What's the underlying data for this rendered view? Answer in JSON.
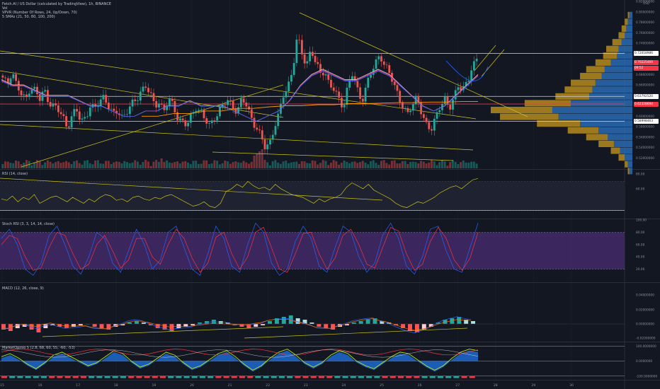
{
  "header": {
    "title": "Fetch.AI / US Dollar (calculated by TradingView), 1h, BINANCE",
    "vol_label": "Vol",
    "vpvr_label": "VPVR (Number Of Rows, 24, Up/Down, 70)",
    "sma_label": "5 SMAs (21, 50, 80, 100, 200)",
    "currency": "USD"
  },
  "panes": {
    "rsi_label": "RSI (14, close)",
    "stoch_label": "Stoch RSI (3, 3, 14, 14, close)",
    "macd_label": "MACD (12, 26, close, 9)",
    "mo_label": "MarketOpinio 5 (2.8, 68, 60, 55, -60, -53)"
  },
  "badges": [
    {
      "text": "0.72018986",
      "y": 0.72018986,
      "bg": "#ffffff",
      "fg": "#131722"
    },
    {
      "text": "0.70225469",
      "y": 0.70225469,
      "bg": "#f23645",
      "fg": "#ffffff"
    },
    {
      "text": "0.63792520",
      "y": 0.6379252,
      "bg": "#ffffff",
      "fg": "#131722"
    },
    {
      "text": "0.62328694",
      "y": 0.62328694,
      "bg": "#f23645",
      "fg": "#ffffff"
    },
    {
      "text": "0.58998463",
      "y": 0.58998463,
      "bg": "#ffffff",
      "fg": "#131722"
    }
  ],
  "countdown": "09:52",
  "colors": {
    "background": "#131722",
    "grid": "#1e222d",
    "up": "#26a69a",
    "down": "#ef5350",
    "sma21": "#e0e3eb",
    "sma50": "#f23645",
    "sma80": "#ab47bc",
    "sma100": "#2962ff",
    "sma200": "#ff9800",
    "trend": "#c9c31a",
    "rsi": "#c9c31a",
    "stoch_k": "#2962ff",
    "stoch_d": "#f23645",
    "stoch_band": "#4a2c73",
    "vp_up": "#2a6ab3",
    "vp_down": "#b58a1d"
  },
  "chart_data": [
    {
      "type": "candlestick",
      "name": "price",
      "title": "Fetch.AI / US Dollar (calculated by TradingView), 1h, BINANCE",
      "ylim": [
        0.5,
        0.82
      ],
      "yticks": [
        0.52,
        0.54,
        0.56,
        0.58,
        0.6,
        0.62,
        0.64,
        0.66,
        0.68,
        0.7,
        0.72,
        0.74,
        0.76,
        0.78,
        0.8,
        0.82
      ],
      "ytick_labels": [
        "0.52000000",
        "0.54000000",
        "0.56000000",
        "0.58000000",
        "0.60000000",
        "0.62000000",
        "0.64000000",
        "0.66000000",
        "0.68000000",
        "0.70000000",
        "0.72000000",
        "0.74000000",
        "0.76000000",
        "0.78000000",
        "0.80000000",
        "0.82000000"
      ],
      "xticks": [
        "15",
        "16",
        "17",
        "18",
        "19",
        "20",
        "21",
        "22",
        "23",
        "24",
        "25",
        "26",
        "27",
        "28",
        "29",
        "30"
      ],
      "close_path": [
        0.67,
        0.66,
        0.69,
        0.66,
        0.64,
        0.63,
        0.66,
        0.65,
        0.63,
        0.65,
        0.63,
        0.62,
        0.61,
        0.6,
        0.58,
        0.6,
        0.61,
        0.59,
        0.6,
        0.62,
        0.61,
        0.63,
        0.64,
        0.62,
        0.6,
        0.61,
        0.6,
        0.61,
        0.62,
        0.63,
        0.65,
        0.66,
        0.64,
        0.62,
        0.63,
        0.61,
        0.63,
        0.62,
        0.6,
        0.59,
        0.58,
        0.6,
        0.62,
        0.61,
        0.59,
        0.58,
        0.6,
        0.61,
        0.62,
        0.63,
        0.62,
        0.61,
        0.63,
        0.62,
        0.6,
        0.58,
        0.56,
        0.54,
        0.55,
        0.58,
        0.6,
        0.64,
        0.66,
        0.69,
        0.75,
        0.72,
        0.7,
        0.73,
        0.7,
        0.68,
        0.69,
        0.66,
        0.65,
        0.63,
        0.62,
        0.66,
        0.68,
        0.65,
        0.63,
        0.66,
        0.68,
        0.7,
        0.72,
        0.7,
        0.68,
        0.66,
        0.64,
        0.62,
        0.6,
        0.62,
        0.64,
        0.61,
        0.58,
        0.57,
        0.6,
        0.62,
        0.63,
        0.61,
        0.64,
        0.66,
        0.65,
        0.66,
        0.7,
        0.71
      ],
      "levels": [
        0.72018986,
        0.6379252,
        0.62328694,
        0.58998463
      ],
      "forecast_path": [
        [
          26.7,
          0.706
        ],
        [
          27.1,
          0.675
        ],
        [
          27.5,
          0.67
        ],
        [
          27.8,
          0.695
        ]
      ],
      "sma21": [
        0.67,
        0.66,
        0.66,
        0.65,
        0.64,
        0.64,
        0.64,
        0.63,
        0.62,
        0.62,
        0.61,
        0.6,
        0.6,
        0.61,
        0.61,
        0.62,
        0.62,
        0.63,
        0.62,
        0.62,
        0.62,
        0.61,
        0.6,
        0.59,
        0.6,
        0.61,
        0.63,
        0.66,
        0.68,
        0.69,
        0.68,
        0.67,
        0.67,
        0.68,
        0.69,
        0.68,
        0.66,
        0.64,
        0.62,
        0.61,
        0.62,
        0.64,
        0.66,
        0.68
      ],
      "sma200": [
        0.6,
        0.6,
        0.605,
        0.605,
        0.61,
        0.61,
        0.615,
        0.615,
        0.618,
        0.62,
        0.62,
        0.622,
        0.622,
        0.624,
        0.624,
        0.625,
        0.626,
        0.626,
        0.627,
        0.627,
        0.628,
        0.628
      ]
    },
    {
      "type": "bar",
      "name": "volume-profile",
      "rows_price": [
        0.8,
        0.787,
        0.774,
        0.761,
        0.748,
        0.735,
        0.722,
        0.709,
        0.696,
        0.683,
        0.67,
        0.657,
        0.644,
        0.631,
        0.618,
        0.605,
        0.592,
        0.579,
        0.566,
        0.553,
        0.54,
        0.527,
        0.514,
        0.501
      ],
      "up_volume": [
        2,
        3,
        4,
        5,
        7,
        9,
        10,
        14,
        18,
        20,
        24,
        26,
        28,
        40,
        52,
        48,
        34,
        22,
        16,
        12,
        8,
        5,
        3,
        2
      ],
      "down_volume": [
        1,
        2,
        3,
        4,
        6,
        8,
        9,
        10,
        12,
        14,
        16,
        18,
        22,
        30,
        40,
        38,
        28,
        20,
        14,
        10,
        6,
        4,
        2,
        1
      ]
    },
    {
      "type": "line",
      "name": "rsi",
      "title": "RSI (14, close)",
      "ylim": [
        20,
        85
      ],
      "yticks": [
        80,
        60
      ],
      "ytick_labels": [
        "80.00",
        "60.00"
      ],
      "levels": [
        30.2
      ],
      "level_label": "30.20",
      "values": [
        46,
        44,
        50,
        42,
        48,
        45,
        52,
        40,
        44,
        48,
        50,
        46,
        42,
        48,
        44,
        40,
        46,
        42,
        48,
        52,
        50,
        44,
        46,
        42,
        48,
        50,
        46,
        44,
        48,
        46,
        50,
        52,
        48,
        44,
        40,
        36,
        38,
        42,
        36,
        34,
        40,
        56,
        60,
        66,
        62,
        70,
        64,
        60,
        62,
        58,
        66,
        60,
        56,
        52,
        50,
        48,
        44,
        40,
        46,
        42,
        46,
        48,
        52,
        62,
        68,
        64,
        60,
        66,
        58,
        54,
        50,
        46,
        40,
        36,
        34,
        38,
        42,
        40,
        44,
        48,
        54,
        58,
        62,
        64,
        60,
        66,
        72,
        74
      ]
    },
    {
      "type": "line",
      "name": "stoch-rsi",
      "title": "Stoch RSI (3, 3, 14, 14, close)",
      "ylim": [
        0,
        100
      ],
      "yticks": [
        100,
        80,
        60,
        40,
        20
      ],
      "ytick_labels": [
        "100.00",
        "80.00",
        "60.00",
        "40.00",
        "20.00"
      ],
      "band": [
        20,
        80
      ],
      "series": [
        {
          "values": [
            70,
            85,
            60,
            20,
            10,
            30,
            75,
            90,
            60,
            25,
            12,
            40,
            80,
            70,
            30,
            15,
            50,
            85,
            60,
            20,
            35,
            80,
            90,
            55,
            20,
            10,
            45,
            90,
            70,
            25,
            15,
            60,
            95,
            80,
            30,
            10,
            20,
            65,
            90,
            70,
            25,
            15,
            55,
            90,
            80,
            40,
            15,
            30,
            75,
            95,
            70,
            25,
            12,
            40,
            85,
            90,
            50,
            20,
            15,
            55,
            95
          ]
        },
        {
          "values": [
            60,
            75,
            70,
            40,
            18,
            22,
            55,
            80,
            75,
            45,
            20,
            28,
            60,
            75,
            50,
            22,
            35,
            70,
            70,
            40,
            28,
            60,
            85,
            70,
            38,
            15,
            30,
            72,
            80,
            45,
            20,
            40,
            80,
            88,
            55,
            20,
            15,
            45,
            78,
            80,
            45,
            20,
            38,
            75,
            85,
            60,
            28,
            22,
            55,
            88,
            82,
            45,
            18,
            28,
            65,
            88,
            70,
            35,
            18,
            38,
            80
          ]
        }
      ]
    },
    {
      "type": "bar",
      "name": "macd",
      "title": "MACD (12, 26, close, 9)",
      "ylim": [
        -0.03,
        0.05
      ],
      "yticks": [
        0.04,
        0.02,
        0,
        -0.02
      ],
      "ytick_labels": [
        "0.04000000",
        "0.02000000",
        "0.00000000",
        "-0.02000000"
      ],
      "histogram": [
        -4,
        -5,
        -3,
        -2,
        -4,
        -6,
        -3,
        -1,
        -2,
        -3,
        -2,
        -1,
        0,
        -2,
        -3,
        -4,
        -2,
        -1,
        1,
        2,
        1,
        -1,
        -3,
        -4,
        -5,
        -3,
        -2,
        -1,
        1,
        2,
        3,
        2,
        1,
        -1,
        -2,
        -3,
        -2,
        -1,
        2,
        4,
        5,
        6,
        4,
        3,
        1,
        -2,
        -3,
        -4,
        -2,
        -1,
        1,
        2,
        3,
        4,
        2,
        1,
        -1,
        -3,
        -5,
        -6,
        -4,
        -2,
        1,
        3,
        4,
        5,
        3,
        2
      ]
    },
    {
      "type": "line",
      "name": "market-opinion",
      "title": "MarketOpinio 5 (2.8, 68, 60, 55, -60, -53)",
      "ylim": [
        -120,
        120
      ],
      "yticks": [
        100,
        0,
        -100
      ],
      "ytick_labels": [
        "100.0000000",
        "0.0000000",
        "-100.0000000"
      ],
      "values": [
        20,
        40,
        10,
        -30,
        -60,
        -20,
        30,
        50,
        20,
        -10,
        -40,
        -20,
        20,
        60,
        40,
        -10,
        -50,
        -30,
        10,
        50,
        30,
        -20,
        -60,
        -40,
        0,
        40,
        60,
        20,
        -30,
        -70,
        -40,
        10,
        50,
        70,
        30,
        -20,
        -50,
        -20,
        30,
        60,
        40,
        -10,
        -40,
        -60,
        -20,
        20,
        50,
        40,
        0,
        -40,
        -70,
        -40,
        10,
        50,
        70,
        60
      ]
    }
  ]
}
